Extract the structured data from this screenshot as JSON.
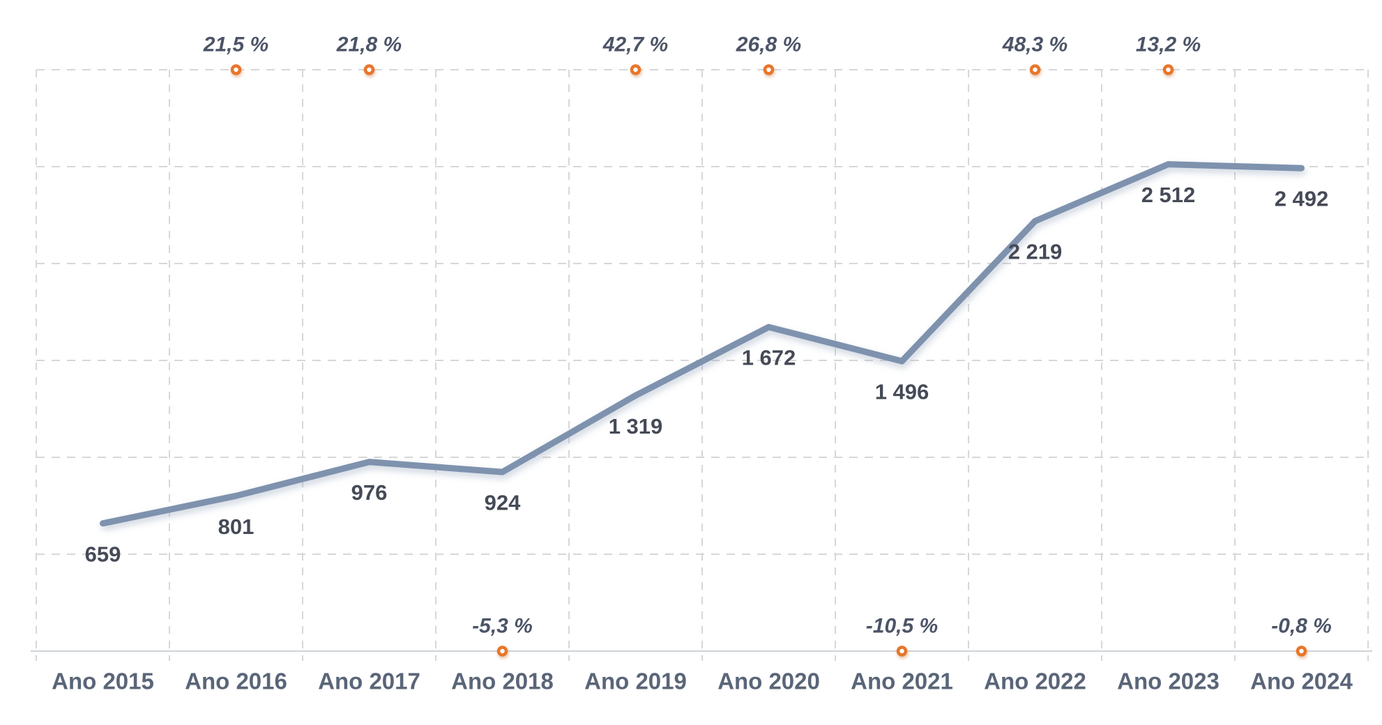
{
  "chart_data": {
    "type": "line",
    "title": "",
    "categories": [
      "Ano 2015",
      "Ano 2016",
      "Ano 2017",
      "Ano 2018",
      "Ano 2019",
      "Ano 2020",
      "Ano 2021",
      "Ano 2022",
      "Ano 2023",
      "Ano 2024"
    ],
    "series": [
      {
        "id": "values",
        "values": [
          659,
          801,
          976,
          924,
          1319,
          1672,
          1496,
          2219,
          2512,
          2492
        ],
        "labels": [
          "659",
          "801",
          "976",
          "924",
          "1 319",
          "1 672",
          "1 496",
          "2 219",
          "2 512",
          "2 492"
        ],
        "line_color": "#7E92AE",
        "label_color": "#454A56"
      },
      {
        "id": "growth-percent",
        "values": [
          null,
          21.5,
          21.8,
          -5.3,
          42.7,
          26.8,
          -10.5,
          48.3,
          13.2,
          -0.8
        ],
        "labels": [
          null,
          "21,5 %",
          "21,8 %",
          "-5,3 %",
          "42,7 %",
          "26,8 %",
          "-10,5 %",
          "48,3 %",
          "13,2 %",
          "-0,8 %"
        ],
        "marker_color": "#E8762C",
        "marker_fill": "#FFFFFF",
        "label_color": "#4C5467"
      }
    ],
    "ylim": [
      0,
      3000
    ],
    "y_gridline_step": 500,
    "y_tick_labels_visible": false,
    "grid_style": "dashed",
    "legend": "none",
    "x_axis_label_color": "#5A6578",
    "gridline_color": "#D7D7D7",
    "axis_line_color": "#CFD3D8",
    "background": "#FFFFFF"
  }
}
